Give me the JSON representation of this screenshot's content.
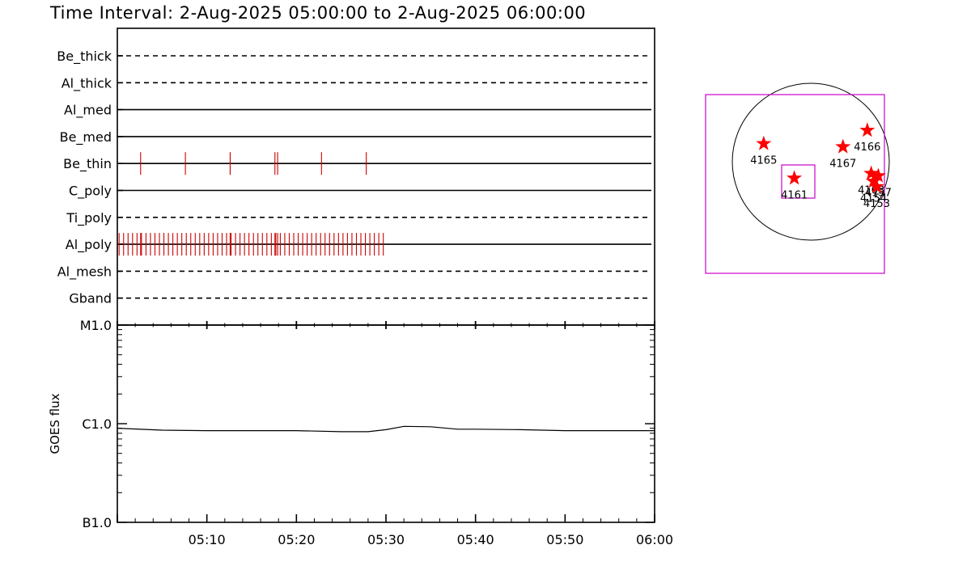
{
  "title": "Time Interval:  2-Aug-2025 05:00:00 to  2-Aug-2025 06:00:00",
  "colors": {
    "axis": "#000000",
    "exposure_ticks": "#cc0000",
    "box": "#cc00cc",
    "star": "#ff0000"
  },
  "chart_data": [
    {
      "type": "timeline",
      "x_range_minutes": [
        0,
        60
      ],
      "filters": [
        {
          "name": "Be_thick",
          "style": "dashed",
          "ticks": []
        },
        {
          "name": "Al_thick",
          "style": "dashed",
          "ticks": []
        },
        {
          "name": "Al_med",
          "style": "solid",
          "ticks": []
        },
        {
          "name": "Be_med",
          "style": "solid",
          "ticks": []
        },
        {
          "name": "Be_thin",
          "style": "solid",
          "ticks": [
            2.6,
            7.6,
            12.6,
            17.6,
            17.9,
            22.8,
            27.8
          ]
        },
        {
          "name": "C_poly",
          "style": "solid",
          "ticks": []
        },
        {
          "name": "Ti_poly",
          "style": "dashed",
          "ticks": []
        },
        {
          "name": "Al_poly",
          "style": "solid",
          "tick_range": [
            0.2,
            29.7
          ],
          "tick_step": 0.5,
          "extra_ticks": [
            2.6,
            12.6,
            17.6,
            17.9
          ]
        },
        {
          "name": "Al_mesh",
          "style": "dashed",
          "ticks": []
        },
        {
          "name": "Gband",
          "style": "dashed",
          "ticks": []
        }
      ]
    },
    {
      "type": "line",
      "ylabel": "GOES flux",
      "scale": "log",
      "ylim": [
        1e-07,
        1e-05
      ],
      "ytick_labels": [
        "B1.0",
        "C1.0",
        "M1.0"
      ],
      "ytick_values": [
        1e-07,
        1e-06,
        1e-05
      ],
      "xlim": [
        0,
        60
      ],
      "xtick_labels": [
        "05:10",
        "05:20",
        "05:30",
        "05:40",
        "05:50",
        "06:00"
      ],
      "xtick_values": [
        10,
        20,
        30,
        40,
        50,
        60
      ],
      "series": [
        {
          "x": [
            0,
            5,
            10,
            15,
            20,
            25,
            28,
            30,
            32,
            35,
            38,
            40,
            45,
            50,
            55,
            60
          ],
          "y": [
            9e-07,
            8.6e-07,
            8.5e-07,
            8.5e-07,
            8.5e-07,
            8.3e-07,
            8.3e-07,
            8.7e-07,
            9.4e-07,
            9.3e-07,
            8.8e-07,
            8.8e-07,
            8.7e-07,
            8.5e-07,
            8.5e-07,
            8.5e-07
          ]
        }
      ]
    },
    {
      "type": "scatter",
      "points": [
        {
          "label": "4165",
          "x": -0.6,
          "y": 0.23
        },
        {
          "label": "4166",
          "x": 0.72,
          "y": 0.4
        },
        {
          "label": "4167",
          "x": 0.41,
          "y": 0.19
        },
        {
          "label": "4161",
          "x": -0.21,
          "y": -0.21
        },
        {
          "label": "4163",
          "x": 0.77,
          "y": -0.15
        },
        {
          "label": "4157",
          "x": 0.86,
          "y": -0.18
        },
        {
          "label": "4154",
          "x": 0.8,
          "y": -0.25
        },
        {
          "label": "4153",
          "x": 0.84,
          "y": -0.32
        }
      ]
    }
  ]
}
